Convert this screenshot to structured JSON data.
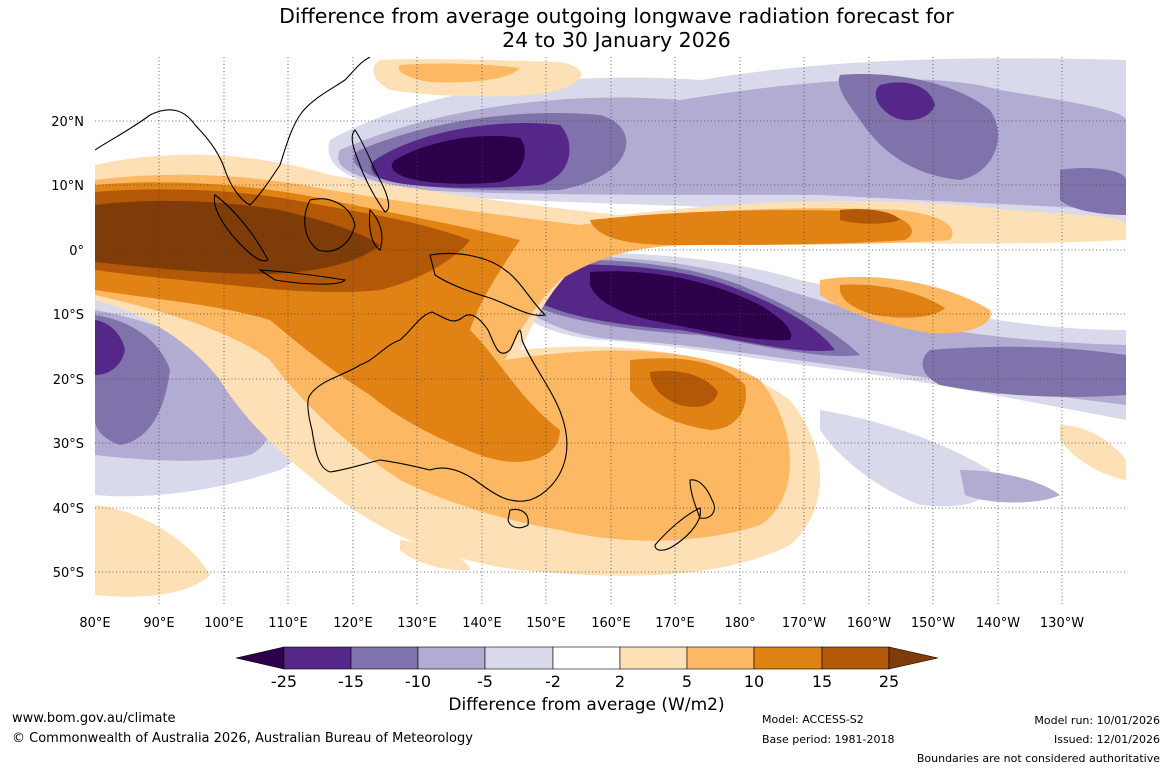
{
  "title_line1": "Difference from average outgoing longwave radiation forecast for",
  "title_line2": "24 to 30 January 2026",
  "lon_labels": [
    "80°E",
    "90°E",
    "100°E",
    "110°E",
    "120°E",
    "130°E",
    "140°E",
    "150°E",
    "160°E",
    "170°E",
    "180°",
    "170°W",
    "160°W",
    "150°W",
    "140°W",
    "130°W"
  ],
  "lat_labels": [
    "20°N",
    "10°N",
    "0°",
    "10°S",
    "20°S",
    "30°S",
    "40°S",
    "50°S"
  ],
  "colorbar": {
    "label": "Difference from average (W/m2)",
    "ticks": [
      "-25",
      "-15",
      "-10",
      "-5",
      "-2",
      "2",
      "5",
      "10",
      "15",
      "25"
    ],
    "colors": [
      "#2d004b",
      "#542788",
      "#8073ac",
      "#b2abd2",
      "#d8daeb",
      "#ffffff",
      "#fee0b6",
      "#fdb863",
      "#e08214",
      "#b35806",
      "#7f3b08"
    ]
  },
  "footer": {
    "website": "www.bom.gov.au/climate",
    "copyright": "© Commonwealth of Australia 2026, Australian Bureau of Meteorology",
    "model": "Model: ACCESS-S2",
    "base_period": "Base period: 1981-2018",
    "model_run": "Model run: 10/01/2026",
    "issued": "Issued: 12/01/2026",
    "disclaimer": "Boundaries are not considered authoritative"
  }
}
